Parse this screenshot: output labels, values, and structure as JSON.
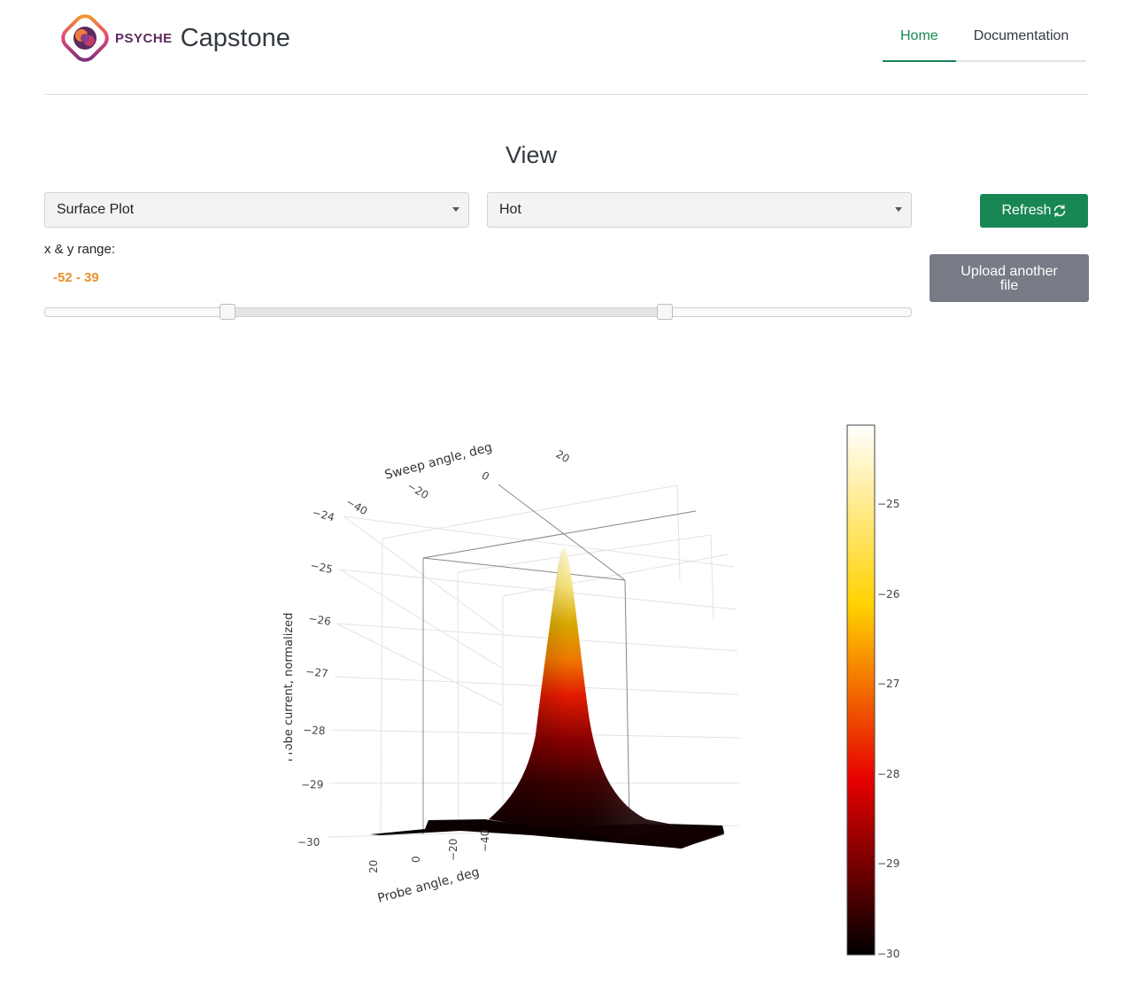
{
  "header": {
    "logo_word": "PSYCHE",
    "app_name": "Capstone",
    "nav": [
      {
        "label": "Home",
        "active": true
      },
      {
        "label": "Documentation",
        "active": false
      }
    ]
  },
  "main": {
    "title": "View",
    "plot_type_select": {
      "value": "Surface Plot"
    },
    "colorscale_select": {
      "value": "Hot"
    },
    "refresh_label": "Refresh",
    "upload_label_1": "Upload another",
    "upload_label_2": "file",
    "range": {
      "label": "x & y range:",
      "value_text": "-52 - 39",
      "min": -52,
      "max": 39
    }
  },
  "colors": {
    "accent": "#198754",
    "secondary": "#787a85",
    "range_value": "#e8912d"
  },
  "chart_data": {
    "type": "surface",
    "colorscale": "Hot",
    "xlabel": "Sweep angle, deg",
    "ylabel": "Probe angle, deg",
    "zlabel": "Probe current, normalized",
    "sweep_ticks": [
      "−40",
      "−20",
      "0",
      "20"
    ],
    "probe_ticks": [
      "20",
      "0",
      "−20",
      "−40"
    ],
    "z_ticks": [
      "−24",
      "−25",
      "−26",
      "−27",
      "−28",
      "−29",
      "−30"
    ],
    "colorbar_ticks": [
      "−25",
      "−26",
      "−27",
      "−28",
      "−29",
      "−30"
    ],
    "zlim": [
      -30,
      -24
    ],
    "colorbar_range": [
      -30,
      -24.1
    ],
    "peak": {
      "z": -24.1
    }
  }
}
